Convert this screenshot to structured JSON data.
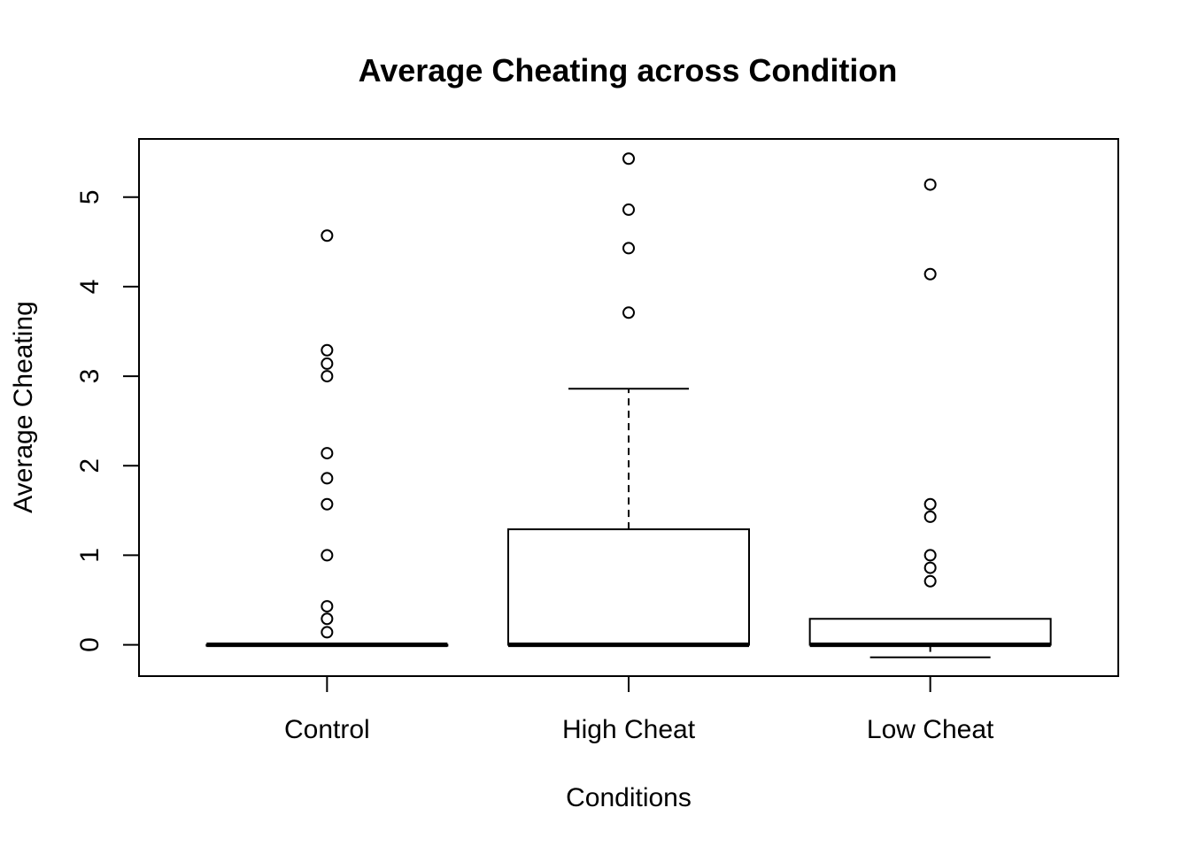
{
  "chart_data": {
    "type": "boxplot",
    "title": "Average Cheating across Condition",
    "xlabel": "Conditions",
    "ylabel": "Average Cheating",
    "ylim": [
      -0.35,
      5.65
    ],
    "yticks": [
      0,
      1,
      2,
      3,
      4,
      5
    ],
    "grid": false,
    "legend": "none",
    "categories": [
      "Control",
      "High Cheat",
      "Low Cheat"
    ],
    "boxes": [
      {
        "category": "Control",
        "whisker_low": 0,
        "q1": 0,
        "median": 0,
        "q3": 0,
        "whisker_high": 0,
        "outliers": [
          0.14,
          0.29,
          0.43,
          1.0,
          1.57,
          1.86,
          2.14,
          3.0,
          3.14,
          3.29,
          4.57
        ]
      },
      {
        "category": "High Cheat",
        "whisker_low": 0,
        "q1": 0,
        "median": 0,
        "q3": 1.29,
        "whisker_high": 2.86,
        "outliers": [
          3.71,
          4.43,
          4.86,
          5.43
        ]
      },
      {
        "category": "Low Cheat",
        "whisker_low": -0.14,
        "q1": 0,
        "median": 0,
        "q3": 0.29,
        "whisker_high": 0.29,
        "outliers": [
          0.71,
          0.86,
          1.0,
          1.43,
          1.57,
          4.14,
          5.14
        ]
      }
    ]
  }
}
